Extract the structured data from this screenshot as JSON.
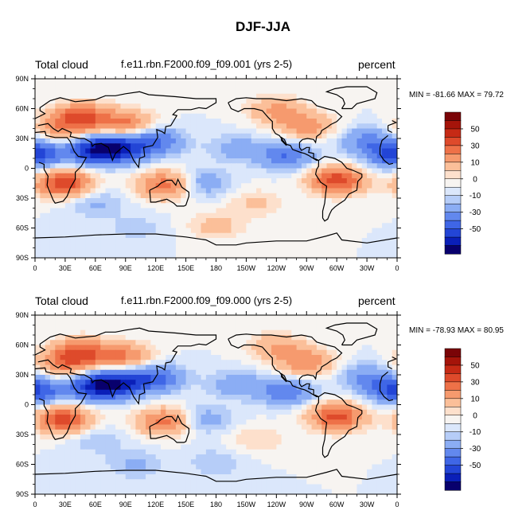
{
  "title": "DJF-JJA",
  "colors": {
    "background": "#ffffff",
    "coastline": "#000000",
    "palette": [
      "#08006d",
      "#0a1fb8",
      "#2345d6",
      "#3f66e6",
      "#6288ee",
      "#8badf4",
      "#b6cdf8",
      "#dbe7fb",
      "#f7f4f1",
      "#fde0cc",
      "#fbbf99",
      "#f69a6e",
      "#ee7148",
      "#de4a2b",
      "#c62a15",
      "#a5140a",
      "#7a0407"
    ]
  },
  "panels": [
    {
      "left_label": "Total cloud",
      "center_label": "f.e11.rbn.F2000.f09_f09.001 (yrs 2-5)",
      "right_label": "percent",
      "minmax_label": "MIN = -81.66 MAX =  79.72"
    },
    {
      "left_label": "Total cloud",
      "center_label": "f.e11.rbn.F2000.f09_f09.000 (yrs 2-5)",
      "right_label": "percent",
      "minmax_label": "MIN = -78.93 MAX =  80.95"
    }
  ],
  "chart_data": [
    {
      "type": "heatmap",
      "subtype": "global-map-contour",
      "variable": "Total cloud",
      "units": "percent",
      "season_difference": "DJF-JJA",
      "case": "f.e11.rbn.F2000.f09_f09.001 (yrs 2-5)",
      "min": -81.66,
      "max": 79.72,
      "x_ticks": [
        "0",
        "30E",
        "60E",
        "90E",
        "120E",
        "150E",
        "180",
        "150W",
        "120W",
        "90W",
        "60W",
        "30W",
        "0"
      ],
      "y_ticks": [
        "90N",
        "60N",
        "30N",
        "0",
        "30S",
        "60S",
        "90S"
      ],
      "xlim": [
        0,
        360
      ],
      "ylim": [
        -90,
        90
      ],
      "colorbar_levels": [
        -70,
        -60,
        -50,
        -40,
        -30,
        -20,
        -10,
        -5,
        0,
        5,
        10,
        20,
        30,
        40,
        50,
        60,
        70
      ],
      "colorbar_labels": [
        "50",
        "30",
        "10",
        "0",
        "-10",
        "-30",
        "-50"
      ],
      "regions": [
        {
          "lon": 45,
          "lat": 52,
          "value": 40
        },
        {
          "lon": 90,
          "lat": 45,
          "value": 32
        },
        {
          "lon": 25,
          "lat": 38,
          "value": 22
        },
        {
          "lon": 60,
          "lat": 18,
          "value": -50
        },
        {
          "lon": 0,
          "lat": 14,
          "value": -45
        },
        {
          "lon": 85,
          "lat": 20,
          "value": -38
        },
        {
          "lon": 120,
          "lat": 27,
          "value": -30
        },
        {
          "lon": 28,
          "lat": -15,
          "value": 48
        },
        {
          "lon": 130,
          "lat": -17,
          "value": 38
        },
        {
          "lon": 300,
          "lat": -12,
          "value": 45
        },
        {
          "lon": 270,
          "lat": 42,
          "value": 26
        },
        {
          "lon": 240,
          "lat": 58,
          "value": 22
        },
        {
          "lon": 330,
          "lat": 28,
          "value": -22
        },
        {
          "lon": 165,
          "lat": -15,
          "value": -20
        },
        {
          "lon": 200,
          "lat": 20,
          "value": -14
        },
        {
          "lon": 250,
          "lat": 13,
          "value": -30
        },
        {
          "lon": 180,
          "lat": -58,
          "value": 14
        },
        {
          "lon": 100,
          "lat": -60,
          "value": -8
        },
        {
          "lon": 220,
          "lat": -35,
          "value": 12
        },
        {
          "lon": 60,
          "lat": -35,
          "value": -12
        }
      ]
    },
    {
      "type": "heatmap",
      "subtype": "global-map-contour",
      "variable": "Total cloud",
      "units": "percent",
      "season_difference": "DJF-JJA",
      "case": "f.e11.rbn.F2000.f09_f09.000 (yrs 2-5)",
      "min": -78.93,
      "max": 80.95,
      "x_ticks": [
        "0",
        "30E",
        "60E",
        "90E",
        "120E",
        "150E",
        "180",
        "150W",
        "120W",
        "90W",
        "60W",
        "30W",
        "0"
      ],
      "y_ticks": [
        "90N",
        "60N",
        "30N",
        "0",
        "30S",
        "60S",
        "90S"
      ],
      "xlim": [
        0,
        360
      ],
      "ylim": [
        -90,
        90
      ],
      "colorbar_levels": [
        -70,
        -60,
        -50,
        -40,
        -30,
        -20,
        -10,
        -5,
        0,
        5,
        10,
        20,
        30,
        40,
        50,
        60,
        70
      ],
      "colorbar_labels": [
        "50",
        "30",
        "10",
        "0",
        "-10",
        "-30",
        "-50"
      ],
      "regions": [
        {
          "lon": 45,
          "lat": 52,
          "value": 42
        },
        {
          "lon": 90,
          "lat": 48,
          "value": 30
        },
        {
          "lon": 25,
          "lat": 38,
          "value": 24
        },
        {
          "lon": 60,
          "lat": 18,
          "value": -48
        },
        {
          "lon": 0,
          "lat": 14,
          "value": -42
        },
        {
          "lon": 85,
          "lat": 22,
          "value": -36
        },
        {
          "lon": 120,
          "lat": 27,
          "value": -32
        },
        {
          "lon": 28,
          "lat": -15,
          "value": 46
        },
        {
          "lon": 130,
          "lat": -17,
          "value": 36
        },
        {
          "lon": 300,
          "lat": -12,
          "value": 44
        },
        {
          "lon": 270,
          "lat": 42,
          "value": 28
        },
        {
          "lon": 240,
          "lat": 58,
          "value": 20
        },
        {
          "lon": 330,
          "lat": 28,
          "value": -20
        },
        {
          "lon": 165,
          "lat": -15,
          "value": -18
        },
        {
          "lon": 200,
          "lat": 20,
          "value": -16
        },
        {
          "lon": 250,
          "lat": 13,
          "value": -28
        },
        {
          "lon": 180,
          "lat": -58,
          "value": -10
        },
        {
          "lon": 100,
          "lat": -60,
          "value": -12
        },
        {
          "lon": 220,
          "lat": -35,
          "value": 10
        },
        {
          "lon": 60,
          "lat": -35,
          "value": -10
        }
      ]
    }
  ]
}
